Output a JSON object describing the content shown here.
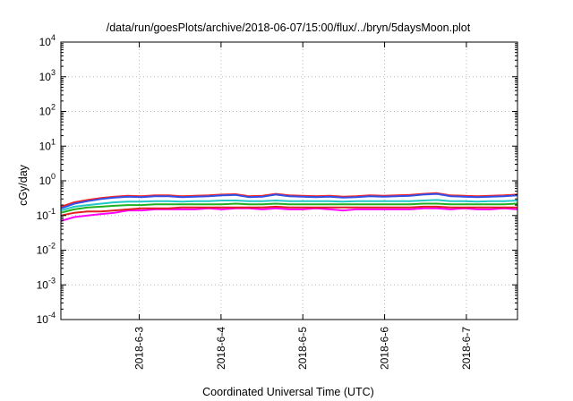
{
  "chart_data": {
    "type": "line",
    "title": "/data/run/goesPlots/archive/2018-06-07/15:00/flux/../bryn/5daysMoon.plot",
    "xlabel": "Coordinated Universal Time (UTC)",
    "ylabel": "cGy/day",
    "yscale": "log",
    "ylim": [
      0.0001,
      10000
    ],
    "xlim": [
      "2018-06-02 01:00",
      "2018-06-07 15:00"
    ],
    "y_ticks": [
      {
        "value": 0.0001,
        "base": "10",
        "exp": "-4"
      },
      {
        "value": 0.001,
        "base": "10",
        "exp": "-3"
      },
      {
        "value": 0.01,
        "base": "10",
        "exp": "-2"
      },
      {
        "value": 0.1,
        "base": "10",
        "exp": "-1"
      },
      {
        "value": 1,
        "base": "10",
        "exp": "0"
      },
      {
        "value": 10,
        "base": "10",
        "exp": "1"
      },
      {
        "value": 100,
        "base": "10",
        "exp": "2"
      },
      {
        "value": 1000,
        "base": "10",
        "exp": "3"
      },
      {
        "value": 10000,
        "base": "10",
        "exp": "4"
      }
    ],
    "x_ticks": [
      {
        "value": "2018-06-03 00:00",
        "label": "2018-6-3"
      },
      {
        "value": "2018-06-04 00:00",
        "label": "2018-6-4"
      },
      {
        "value": "2018-06-05 00:00",
        "label": "2018-6-5"
      },
      {
        "value": "2018-06-06 00:00",
        "label": "2018-6-6"
      },
      {
        "value": "2018-06-07 00:00",
        "label": "2018-6-7"
      }
    ],
    "grid": true,
    "legend": "none",
    "series": [
      {
        "color": "#ff00ff",
        "values": [
          0.07,
          0.09,
          0.1,
          0.11,
          0.12,
          0.14,
          0.14,
          0.15,
          0.15,
          0.15,
          0.15,
          0.16,
          0.15,
          0.16,
          0.16,
          0.15,
          0.16,
          0.15,
          0.15,
          0.16,
          0.15,
          0.14,
          0.15,
          0.15,
          0.15,
          0.15,
          0.15,
          0.16,
          0.16,
          0.15,
          0.16,
          0.15,
          0.15,
          0.16,
          0.15
        ]
      },
      {
        "color": "#e02020",
        "values": [
          0.1,
          0.12,
          0.13,
          0.13,
          0.14,
          0.15,
          0.16,
          0.16,
          0.16,
          0.17,
          0.17,
          0.17,
          0.17,
          0.17,
          0.17,
          0.17,
          0.18,
          0.17,
          0.17,
          0.17,
          0.17,
          0.17,
          0.17,
          0.17,
          0.17,
          0.17,
          0.17,
          0.18,
          0.18,
          0.17,
          0.17,
          0.17,
          0.17,
          0.17,
          0.17
        ]
      },
      {
        "color": "#20b020",
        "values": [
          0.12,
          0.15,
          0.17,
          0.18,
          0.19,
          0.2,
          0.2,
          0.21,
          0.21,
          0.21,
          0.21,
          0.21,
          0.21,
          0.22,
          0.21,
          0.21,
          0.22,
          0.21,
          0.21,
          0.21,
          0.21,
          0.21,
          0.21,
          0.21,
          0.21,
          0.21,
          0.21,
          0.22,
          0.22,
          0.21,
          0.21,
          0.21,
          0.21,
          0.21,
          0.22
        ]
      },
      {
        "color": "#20c8c8",
        "values": [
          0.14,
          0.18,
          0.2,
          0.22,
          0.24,
          0.25,
          0.25,
          0.26,
          0.26,
          0.25,
          0.26,
          0.26,
          0.27,
          0.27,
          0.26,
          0.26,
          0.27,
          0.26,
          0.26,
          0.26,
          0.26,
          0.25,
          0.26,
          0.26,
          0.26,
          0.26,
          0.26,
          0.27,
          0.28,
          0.26,
          0.26,
          0.25,
          0.26,
          0.26,
          0.27
        ]
      },
      {
        "color": "#ff2020",
        "values": [
          0.18,
          0.24,
          0.28,
          0.32,
          0.35,
          0.37,
          0.36,
          0.38,
          0.38,
          0.36,
          0.37,
          0.38,
          0.4,
          0.41,
          0.36,
          0.37,
          0.42,
          0.38,
          0.37,
          0.36,
          0.37,
          0.35,
          0.36,
          0.38,
          0.37,
          0.38,
          0.39,
          0.42,
          0.44,
          0.38,
          0.37,
          0.36,
          0.37,
          0.38,
          0.4
        ]
      },
      {
        "color": "#3050e8",
        "values": [
          0.16,
          0.22,
          0.26,
          0.3,
          0.33,
          0.35,
          0.34,
          0.36,
          0.36,
          0.34,
          0.35,
          0.36,
          0.38,
          0.39,
          0.34,
          0.35,
          0.4,
          0.36,
          0.35,
          0.34,
          0.35,
          0.33,
          0.34,
          0.36,
          0.35,
          0.36,
          0.37,
          0.4,
          0.42,
          0.36,
          0.35,
          0.34,
          0.35,
          0.36,
          0.38
        ]
      }
    ]
  }
}
